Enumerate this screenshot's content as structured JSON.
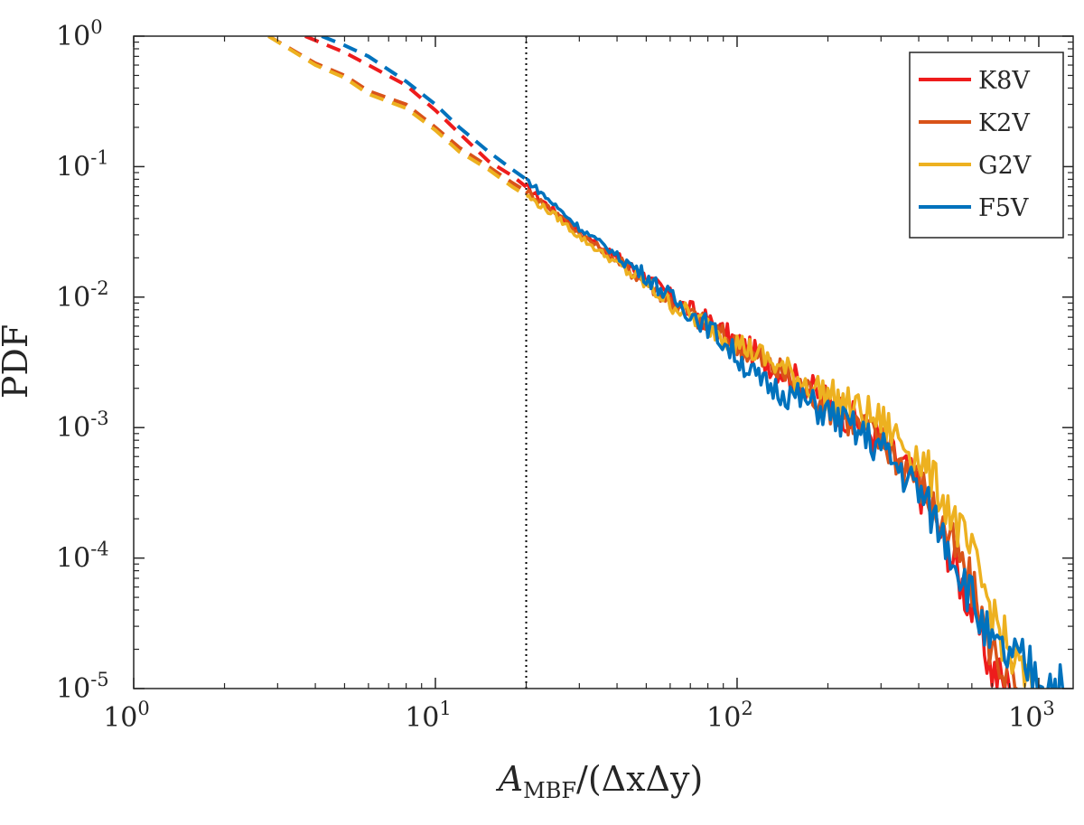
{
  "chart_data": {
    "type": "line",
    "xscale": "log",
    "yscale": "log",
    "xlim": [
      1,
      1300
    ],
    "ylim": [
      1e-05,
      1
    ],
    "xlabel": "A_MBF/(ΔxΔy)",
    "xlabel_main": "A",
    "xlabel_sub": "MBF",
    "xlabel_rest": "/(ΔxΔy)",
    "ylabel": "PDF",
    "x_ticks": [
      {
        "value": 1,
        "base": "10",
        "exp": "0"
      },
      {
        "value": 10,
        "base": "10",
        "exp": "1"
      },
      {
        "value": 100,
        "base": "10",
        "exp": "2"
      },
      {
        "value": 1000,
        "base": "10",
        "exp": "3"
      }
    ],
    "y_ticks": [
      {
        "value": 1,
        "base": "10",
        "exp": "0"
      },
      {
        "value": 0.1,
        "base": "10",
        "exp": "-1"
      },
      {
        "value": 0.01,
        "base": "10",
        "exp": "-2"
      },
      {
        "value": 0.001,
        "base": "10",
        "exp": "-3"
      },
      {
        "value": 0.0001,
        "base": "10",
        "exp": "-4"
      },
      {
        "value": 1e-05,
        "base": "10",
        "exp": "-5"
      }
    ],
    "threshold_x": 20,
    "legend_position": "top-right",
    "series": [
      {
        "name": "K8V",
        "color": "#EE1C1C",
        "dashed": [
          [
            3.7,
            1.0
          ],
          [
            5,
            0.75
          ],
          [
            6,
            0.6
          ],
          [
            8,
            0.42
          ],
          [
            10,
            0.27
          ],
          [
            12,
            0.18
          ],
          [
            15,
            0.11
          ],
          [
            18,
            0.085
          ],
          [
            20,
            0.07
          ]
        ],
        "solid": [
          [
            20,
            0.07
          ],
          [
            25,
            0.045
          ],
          [
            30,
            0.032
          ],
          [
            40,
            0.02
          ],
          [
            50,
            0.014
          ],
          [
            60,
            0.01
          ],
          [
            80,
            0.0065
          ],
          [
            100,
            0.0045
          ],
          [
            150,
            0.0025
          ],
          [
            200,
            0.0016
          ],
          [
            300,
            0.0008
          ],
          [
            400,
            0.00035
          ],
          [
            500,
            0.00012
          ],
          [
            600,
            4e-05
          ],
          [
            700,
            1.4e-05
          ],
          [
            800,
            1e-05
          ]
        ]
      },
      {
        "name": "K2V",
        "color": "#D95319",
        "dashed": [
          [
            2.8,
            1.0
          ],
          [
            4,
            0.62
          ],
          [
            5,
            0.5
          ],
          [
            6,
            0.38
          ],
          [
            8,
            0.3
          ],
          [
            10,
            0.2
          ],
          [
            12,
            0.14
          ],
          [
            15,
            0.1
          ],
          [
            18,
            0.075
          ],
          [
            20,
            0.065
          ]
        ],
        "solid": [
          [
            20,
            0.065
          ],
          [
            25,
            0.045
          ],
          [
            30,
            0.031
          ],
          [
            40,
            0.019
          ],
          [
            50,
            0.013
          ],
          [
            60,
            0.0095
          ],
          [
            80,
            0.006
          ],
          [
            100,
            0.0042
          ],
          [
            150,
            0.0024
          ],
          [
            200,
            0.0015
          ],
          [
            300,
            0.0008
          ],
          [
            400,
            0.0004
          ],
          [
            500,
            0.00015
          ],
          [
            600,
            6e-05
          ],
          [
            700,
            2e-05
          ],
          [
            850,
            1e-05
          ]
        ]
      },
      {
        "name": "G2V",
        "color": "#EDB120",
        "dashed": [
          [
            2.8,
            1.0
          ],
          [
            4,
            0.6
          ],
          [
            5,
            0.48
          ],
          [
            6,
            0.36
          ],
          [
            8,
            0.28
          ],
          [
            10,
            0.19
          ],
          [
            12,
            0.13
          ],
          [
            15,
            0.095
          ],
          [
            18,
            0.07
          ],
          [
            20,
            0.06
          ]
        ],
        "solid": [
          [
            20,
            0.06
          ],
          [
            25,
            0.042
          ],
          [
            30,
            0.029
          ],
          [
            40,
            0.018
          ],
          [
            50,
            0.0125
          ],
          [
            60,
            0.009
          ],
          [
            80,
            0.006
          ],
          [
            100,
            0.0045
          ],
          [
            150,
            0.0026
          ],
          [
            200,
            0.0018
          ],
          [
            300,
            0.0011
          ],
          [
            400,
            0.0006
          ],
          [
            500,
            0.00025
          ],
          [
            600,
            0.0001
          ],
          [
            700,
            4e-05
          ],
          [
            800,
            1.8e-05
          ],
          [
            950,
            1e-05
          ]
        ]
      },
      {
        "name": "F5V",
        "color": "#0072BD",
        "dashed": [
          [
            4.2,
            1.0
          ],
          [
            5,
            0.85
          ],
          [
            6,
            0.7
          ],
          [
            8,
            0.45
          ],
          [
            10,
            0.3
          ],
          [
            12,
            0.2
          ],
          [
            15,
            0.13
          ],
          [
            18,
            0.095
          ],
          [
            20,
            0.08
          ]
        ],
        "solid": [
          [
            20,
            0.08
          ],
          [
            25,
            0.05
          ],
          [
            30,
            0.034
          ],
          [
            40,
            0.021
          ],
          [
            50,
            0.0145
          ],
          [
            60,
            0.01
          ],
          [
            80,
            0.006
          ],
          [
            100,
            0.0035
          ],
          [
            120,
            0.0022
          ],
          [
            150,
            0.0018
          ],
          [
            200,
            0.0013
          ],
          [
            300,
            0.0007
          ],
          [
            400,
            0.00033
          ],
          [
            500,
            0.00013
          ],
          [
            600,
            5e-05
          ],
          [
            700,
            2e-05
          ],
          [
            900,
            1.5e-05
          ],
          [
            1200,
            1e-05
          ]
        ]
      }
    ]
  }
}
